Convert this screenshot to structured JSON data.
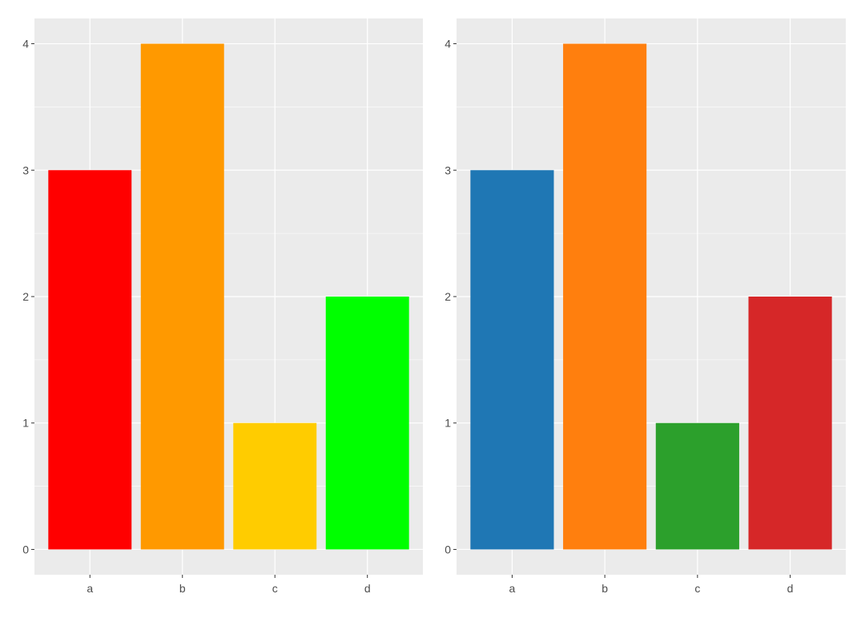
{
  "chart_data": [
    {
      "type": "bar",
      "title": "",
      "xlabel": "",
      "ylabel": "",
      "categories": [
        "a",
        "b",
        "c",
        "d"
      ],
      "values": [
        3,
        4,
        1,
        2
      ],
      "colors": [
        "#FF0000",
        "#FF9900",
        "#FFCC00",
        "#00FF00"
      ],
      "yticks": [
        "0",
        "1",
        "2",
        "3",
        "4"
      ],
      "ylim": [
        -0.2,
        4.2
      ],
      "grid": true,
      "legend": "none",
      "panel_background": "#EBEBEB"
    },
    {
      "type": "bar",
      "title": "",
      "xlabel": "",
      "ylabel": "",
      "categories": [
        "a",
        "b",
        "c",
        "d"
      ],
      "values": [
        3,
        4,
        1,
        2
      ],
      "colors": [
        "#1F77B4",
        "#FF7F0E",
        "#2CA02C",
        "#D62728"
      ],
      "yticks": [
        "0",
        "1",
        "2",
        "3",
        "4"
      ],
      "ylim": [
        -0.2,
        4.2
      ],
      "grid": true,
      "legend": "none",
      "panel_background": "#EBEBEB"
    }
  ]
}
